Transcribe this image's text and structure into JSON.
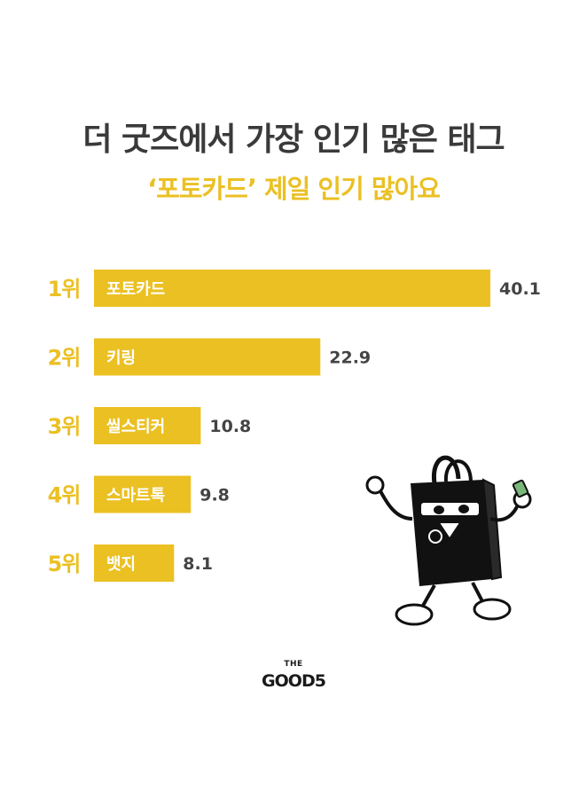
{
  "header": {
    "title": "더 굿즈에서 가장 인기 많은 태그",
    "subtitle": "‘포토카드’ 제일 인기 많아요"
  },
  "brand": {
    "line1": "THE",
    "line2": "GOOD5"
  },
  "colors": {
    "bar": "#ebc023",
    "rank": "#ebc023",
    "title": "#3a3a3a",
    "value": "#444444",
    "bar_label": "#ffffff"
  },
  "chart_data": {
    "type": "bar",
    "orientation": "horizontal",
    "ranks": [
      "1위",
      "2위",
      "3위",
      "4위",
      "5위"
    ],
    "categories": [
      "포토카드",
      "키링",
      "씰스티커",
      "스마트톡",
      "뱃지"
    ],
    "values": [
      40.1,
      22.9,
      10.8,
      9.8,
      8.1
    ],
    "grid": false
  }
}
